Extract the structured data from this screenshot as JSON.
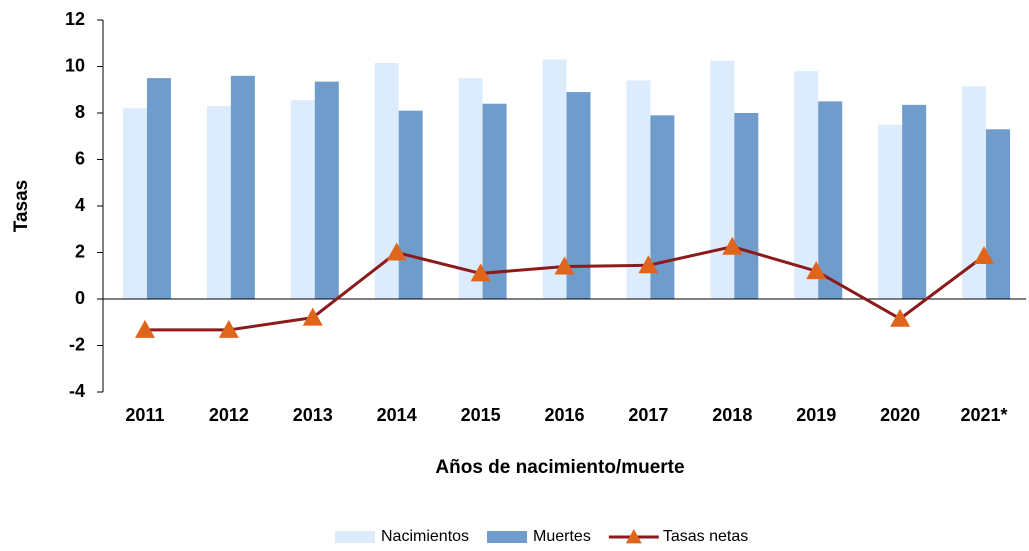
{
  "chart_data": {
    "type": "bar_line",
    "x_label": "Años de nacimiento/muerte",
    "y_label": "Tasas",
    "categories": [
      "2011",
      "2012",
      "2013",
      "2014",
      "2015",
      "2016",
      "2017",
      "2018",
      "2019",
      "2020",
      "2021*"
    ],
    "series": [
      {
        "name": "Nacimientos",
        "type": "bar",
        "color": "#dcecfc",
        "values": [
          8.2,
          8.3,
          8.55,
          10.15,
          9.5,
          10.3,
          9.4,
          10.25,
          9.8,
          7.5,
          9.15
        ]
      },
      {
        "name": "Muertes",
        "type": "bar",
        "color": "#6f9ccb",
        "values": [
          9.5,
          9.6,
          9.35,
          8.1,
          8.4,
          8.9,
          7.9,
          8.0,
          8.5,
          8.35,
          7.3
        ]
      },
      {
        "name": "Tasas netas",
        "type": "line",
        "color": "#8b1a1a",
        "marker_color": "#e0651c",
        "values": [
          -1.33,
          -1.33,
          -0.8,
          2.0,
          1.1,
          1.4,
          1.45,
          2.25,
          1.2,
          -0.85,
          1.85
        ]
      }
    ],
    "ylim": [
      -4,
      12
    ],
    "yticks": [
      -4,
      -2,
      0,
      2,
      4,
      6,
      8,
      10,
      12
    ],
    "legend": "bottom",
    "grid": false
  }
}
